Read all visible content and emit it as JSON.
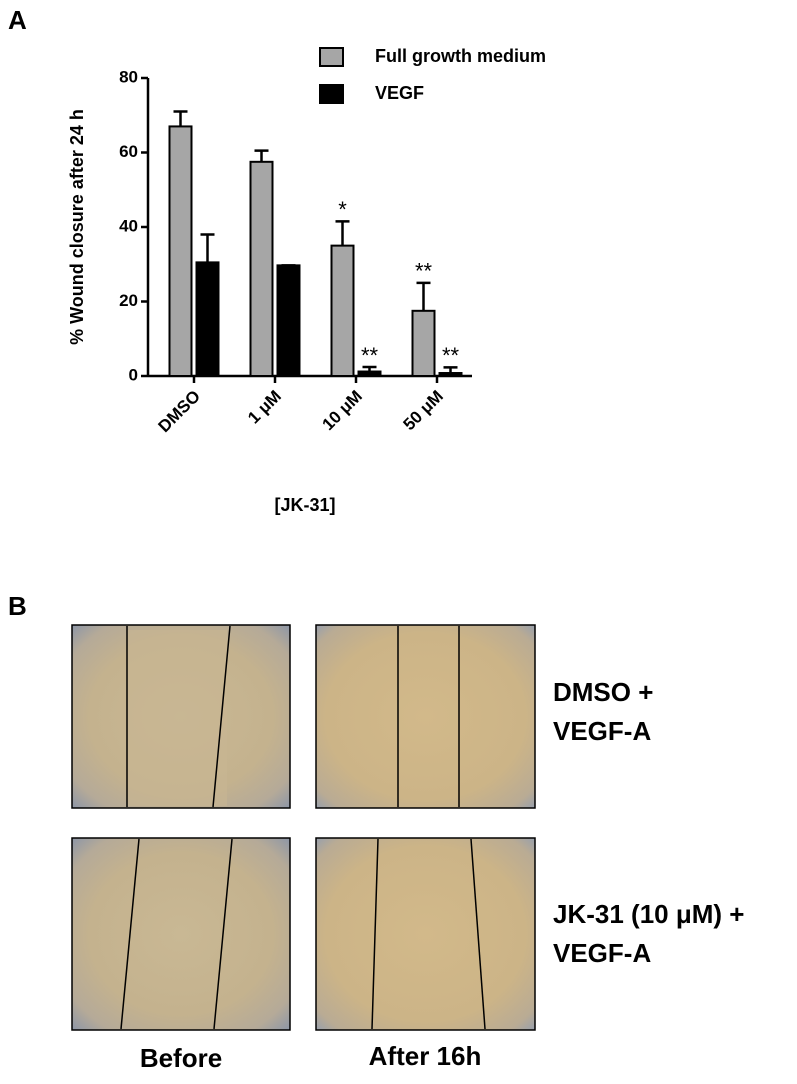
{
  "panel_a_label": "A",
  "chart_data": {
    "type": "bar",
    "y_label": "% Wound closure after 24 h",
    "x_label": "[JK-31]",
    "categories": [
      "DMSO",
      "1 μM",
      "10 μM",
      "50 μM"
    ],
    "series": [
      {
        "name": "Full growth medium",
        "color": "#a6a6a6",
        "values": [
          67,
          57.5,
          35,
          17.5
        ],
        "errors": [
          4,
          3,
          6.5,
          7.5
        ],
        "annotations": [
          null,
          null,
          "*",
          "**"
        ]
      },
      {
        "name": "VEGF",
        "color": "#000000",
        "values": [
          30.5,
          29.7,
          1.2,
          0.8
        ],
        "errors": [
          7.5,
          0,
          1.2,
          1.5
        ],
        "annotations": [
          null,
          null,
          "**",
          "**"
        ]
      }
    ],
    "ylim": [
      0,
      80
    ],
    "yticks": [
      0,
      20,
      40,
      60,
      80
    ],
    "legend": "top-right"
  },
  "panel_b": {
    "label": "B",
    "row_labels": [
      [
        "DMSO +",
        "VEGF-A"
      ],
      [
        "JK-31 (10 μM) +",
        "VEGF-A"
      ]
    ],
    "column_labels": [
      "Before",
      "After 16h"
    ]
  }
}
